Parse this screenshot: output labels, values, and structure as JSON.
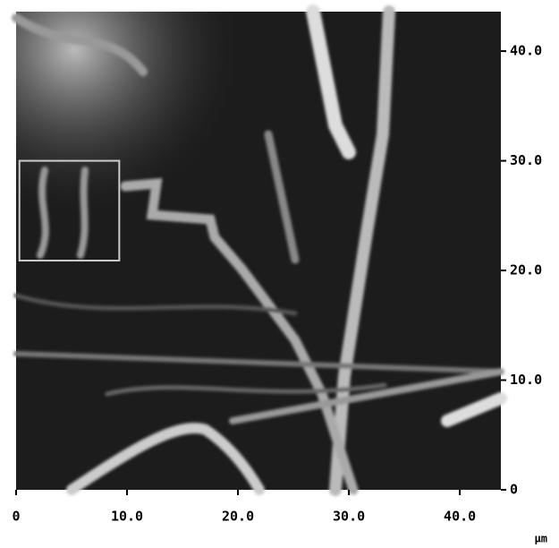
{
  "image": {
    "xlim": [
      0,
      43.7
    ],
    "ylim": [
      0,
      43.6
    ],
    "xticks": [
      0,
      {
        "value": 10,
        "label": "10.0"
      },
      {
        "value": 20,
        "label": "20.0"
      },
      {
        "value": 30,
        "label": "30.0"
      },
      {
        "value": 40,
        "label": "40.0"
      }
    ],
    "yticks": [
      0,
      {
        "value": 10,
        "label": "10.0"
      },
      {
        "value": 20,
        "label": "20.0"
      },
      {
        "value": 30,
        "label": "30.0"
      },
      {
        "value": 40,
        "label": "40.0"
      }
    ],
    "unit": "µm",
    "roi": {
      "x": [
        0.3,
        9.3
      ],
      "y": [
        20.9,
        30
      ]
    }
  }
}
